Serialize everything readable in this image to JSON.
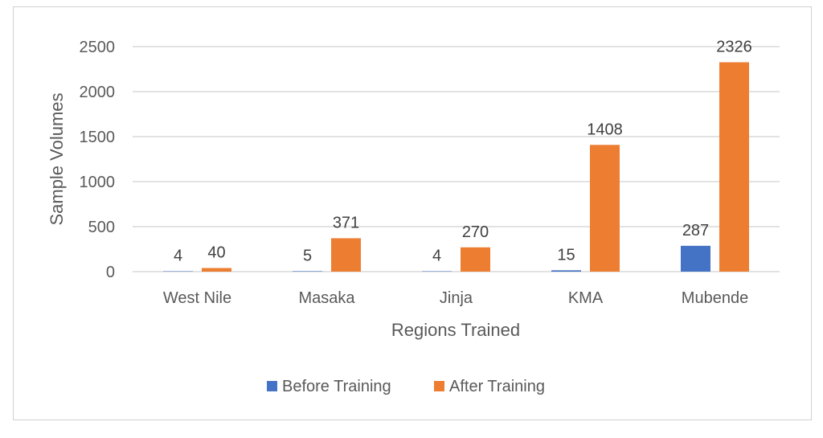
{
  "chart_data": {
    "type": "bar",
    "title": "",
    "xlabel": "Regions Trained",
    "ylabel": "Sample Volumes",
    "categories": [
      "West Nile",
      "Masaka",
      "Jinja",
      "KMA",
      "Mubende"
    ],
    "series": [
      {
        "name": "Before Training",
        "color": "#4472c4",
        "values": [
          4,
          5,
          4,
          15,
          287
        ]
      },
      {
        "name": "After Training",
        "color": "#ed7d31",
        "values": [
          40,
          371,
          270,
          1408,
          2326
        ]
      }
    ],
    "ylim": [
      0,
      2500
    ],
    "yticks": [
      0,
      500,
      1000,
      1500,
      2000,
      2500
    ],
    "grid": true,
    "legend_position": "bottom",
    "data_labels": true
  }
}
